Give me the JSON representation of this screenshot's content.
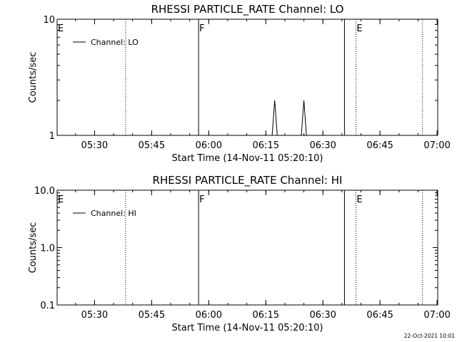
{
  "footer_timestamp": "22-Oct-2021 10:01",
  "chart_data": [
    {
      "type": "line",
      "title": "RHESSI PARTICLE_RATE Channel: LO",
      "xlabel": "Start Time (14-Nov-11 05:20:10)",
      "ylabel": "Counts/sec",
      "yscale": "log",
      "ylim": [
        1,
        10
      ],
      "xlim": [
        "05:20:10",
        "07:00:10"
      ],
      "x_ticks": [
        "05:30",
        "05:45",
        "06:00",
        "06:15",
        "06:30",
        "06:45",
        "07:00"
      ],
      "y_ticks": [
        "1",
        "10"
      ],
      "grid": false,
      "legend": {
        "position": "top-left"
      },
      "series": [
        {
          "name": "Channel: LO",
          "color": "#000000",
          "points": [
            {
              "x": "06:16:40",
              "y": 1
            },
            {
              "x": "06:17:20",
              "y": 2
            },
            {
              "x": "06:18:00",
              "y": 1
            },
            {
              "x": "06:24:20",
              "y": 1
            },
            {
              "x": "06:25:00",
              "y": 2
            },
            {
              "x": "06:25:40",
              "y": 1
            }
          ]
        }
      ],
      "event_lines": [
        {
          "x": "05:20:10",
          "label": "E",
          "style": "dotted"
        },
        {
          "x": "05:38:10",
          "label": "",
          "style": "dotted"
        },
        {
          "x": "05:57:20",
          "label": "F",
          "style": "solid"
        },
        {
          "x": "06:35:40",
          "label": "",
          "style": "solid"
        },
        {
          "x": "06:38:40",
          "label": "E",
          "style": "dotted"
        },
        {
          "x": "06:56:10",
          "label": "",
          "style": "dotted"
        }
      ]
    },
    {
      "type": "line",
      "title": "RHESSI PARTICLE_RATE Channel: HI",
      "xlabel": "Start Time (14-Nov-11 05:20:10)",
      "ylabel": "Counts/sec",
      "yscale": "log",
      "ylim": [
        0.1,
        10.0
      ],
      "xlim": [
        "05:20:10",
        "07:00:10"
      ],
      "x_ticks": [
        "05:30",
        "05:45",
        "06:00",
        "06:15",
        "06:30",
        "06:45",
        "07:00"
      ],
      "y_ticks": [
        "0.1",
        "1.0",
        "10.0"
      ],
      "grid": false,
      "legend": {
        "position": "top-left"
      },
      "series": [
        {
          "name": "Channel: HI",
          "color": "#000000",
          "points": []
        }
      ],
      "event_lines": [
        {
          "x": "05:20:10",
          "label": "E",
          "style": "dotted"
        },
        {
          "x": "05:38:10",
          "label": "",
          "style": "dotted"
        },
        {
          "x": "05:57:20",
          "label": "F",
          "style": "solid"
        },
        {
          "x": "06:35:40",
          "label": "",
          "style": "solid"
        },
        {
          "x": "06:38:40",
          "label": "E",
          "style": "dotted"
        },
        {
          "x": "06:56:10",
          "label": "",
          "style": "dotted"
        }
      ]
    }
  ]
}
